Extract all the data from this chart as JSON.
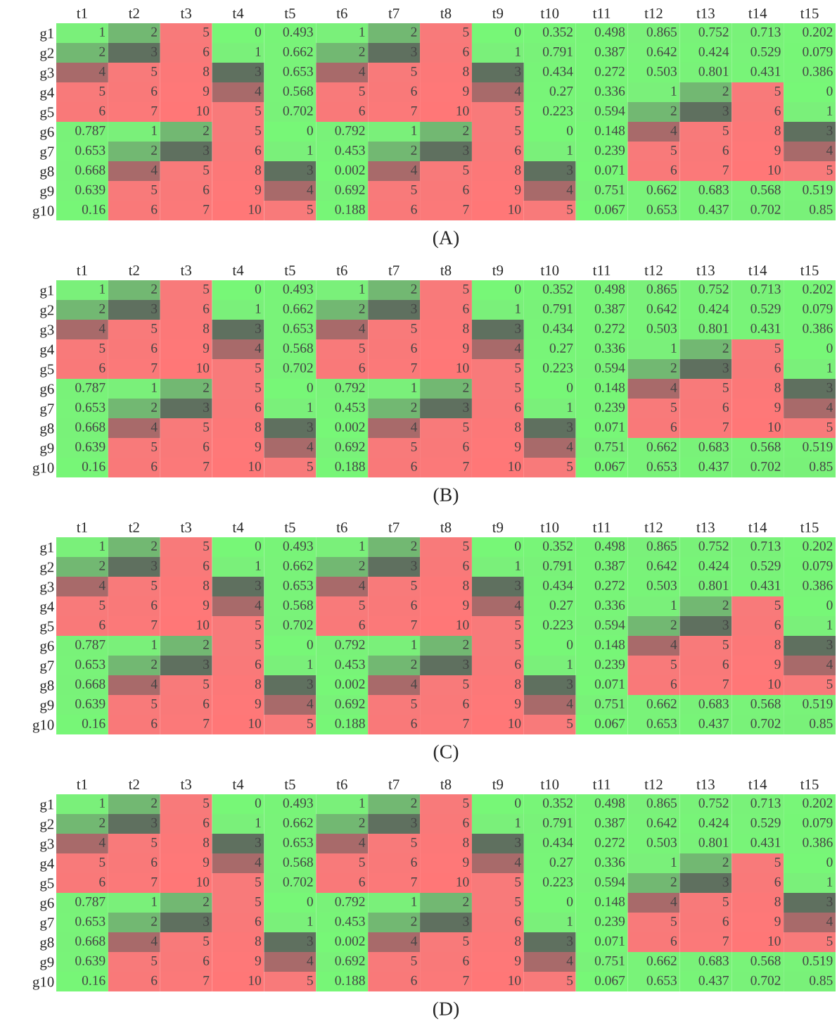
{
  "chart_data": [
    {
      "type": "heatmap",
      "title": "(A)",
      "data_labels": true,
      "categories": [
        "t1",
        "t2",
        "t3",
        "t4",
        "t5",
        "t6",
        "t7",
        "t8",
        "t9",
        "t10",
        "t11",
        "t12",
        "t13",
        "t14",
        "t15"
      ],
      "y_categories": [
        "g1",
        "g2",
        "g3",
        "g4",
        "g5",
        "g6",
        "g7",
        "g8",
        "g9",
        "g10"
      ],
      "cells": [
        [
          1,
          2,
          5,
          0,
          0.493,
          1,
          2,
          5,
          0,
          0.352,
          0.498,
          0.865,
          0.752,
          0.713,
          0.202
        ],
        [
          2,
          3,
          6,
          1,
          0.662,
          2,
          3,
          6,
          1,
          0.791,
          0.387,
          0.642,
          0.424,
          0.529,
          0.079
        ],
        [
          4,
          5,
          8,
          3,
          0.653,
          4,
          5,
          8,
          3,
          0.434,
          0.272,
          0.503,
          0.801,
          0.431,
          0.386
        ],
        [
          5,
          6,
          9,
          4,
          0.568,
          5,
          6,
          9,
          4,
          0.27,
          0.336,
          1,
          2,
          5,
          0
        ],
        [
          6,
          7,
          10,
          5,
          0.702,
          6,
          7,
          10,
          5,
          0.223,
          0.594,
          2,
          3,
          6,
          1
        ],
        [
          0.787,
          1,
          2,
          5,
          0,
          0.792,
          1,
          2,
          5,
          0,
          0.148,
          4,
          5,
          8,
          3
        ],
        [
          0.653,
          2,
          3,
          6,
          1,
          0.453,
          2,
          3,
          6,
          1,
          0.239,
          5,
          6,
          9,
          4
        ],
        [
          0.668,
          4,
          5,
          8,
          3,
          0.002,
          4,
          5,
          8,
          3,
          0.071,
          6,
          7,
          10,
          5
        ],
        [
          0.639,
          5,
          6,
          9,
          4,
          0.692,
          5,
          6,
          9,
          4,
          0.751,
          0.662,
          0.683,
          0.568,
          0.519
        ],
        [
          0.16,
          6,
          7,
          10,
          5,
          0.188,
          6,
          7,
          10,
          5,
          0.067,
          0.653,
          0.437,
          0.702,
          0.85
        ]
      ]
    },
    {
      "type": "heatmap",
      "title": "(B)",
      "data_labels": true,
      "categories": [
        "t1",
        "t2",
        "t3",
        "t4",
        "t5",
        "t6",
        "t7",
        "t8",
        "t9",
        "t10",
        "t11",
        "t12",
        "t13",
        "t14",
        "t15"
      ],
      "y_categories": [
        "g1",
        "g2",
        "g3",
        "g4",
        "g5",
        "g6",
        "g7",
        "g8",
        "g9",
        "g10"
      ],
      "cells": [
        [
          1,
          2,
          5,
          0,
          0.493,
          1,
          2,
          5,
          0,
          0.352,
          0.498,
          0.865,
          0.752,
          0.713,
          0.202
        ],
        [
          2,
          3,
          6,
          1,
          0.662,
          2,
          3,
          6,
          1,
          0.791,
          0.387,
          0.642,
          0.424,
          0.529,
          0.079
        ],
        [
          4,
          5,
          8,
          3,
          0.653,
          4,
          5,
          8,
          3,
          0.434,
          0.272,
          0.503,
          0.801,
          0.431,
          0.386
        ],
        [
          5,
          6,
          9,
          4,
          0.568,
          5,
          6,
          9,
          4,
          0.27,
          0.336,
          1,
          2,
          5,
          0
        ],
        [
          6,
          7,
          10,
          5,
          0.702,
          6,
          7,
          10,
          5,
          0.223,
          0.594,
          2,
          3,
          6,
          1
        ],
        [
          0.787,
          1,
          2,
          5,
          0,
          0.792,
          1,
          2,
          5,
          0,
          0.148,
          4,
          5,
          8,
          3
        ],
        [
          0.653,
          2,
          3,
          6,
          1,
          0.453,
          2,
          3,
          6,
          1,
          0.239,
          5,
          6,
          9,
          4
        ],
        [
          0.668,
          4,
          5,
          8,
          3,
          0.002,
          4,
          5,
          8,
          3,
          0.071,
          6,
          7,
          10,
          5
        ],
        [
          0.639,
          5,
          6,
          9,
          4,
          0.692,
          5,
          6,
          9,
          4,
          0.751,
          0.662,
          0.683,
          0.568,
          0.519
        ],
        [
          0.16,
          6,
          7,
          10,
          5,
          0.188,
          6,
          7,
          10,
          5,
          0.067,
          0.653,
          0.437,
          0.702,
          0.85
        ]
      ]
    },
    {
      "type": "heatmap",
      "title": "(C)",
      "data_labels": true,
      "categories": [
        "t1",
        "t2",
        "t3",
        "t4",
        "t5",
        "t6",
        "t7",
        "t8",
        "t9",
        "t10",
        "t11",
        "t12",
        "t13",
        "t14",
        "t15"
      ],
      "y_categories": [
        "g1",
        "g2",
        "g3",
        "g4",
        "g5",
        "g6",
        "g7",
        "g8",
        "g9",
        "g10"
      ],
      "cells": [
        [
          1,
          2,
          5,
          0,
          0.493,
          1,
          2,
          5,
          0,
          0.352,
          0.498,
          0.865,
          0.752,
          0.713,
          0.202
        ],
        [
          2,
          3,
          6,
          1,
          0.662,
          2,
          3,
          6,
          1,
          0.791,
          0.387,
          0.642,
          0.424,
          0.529,
          0.079
        ],
        [
          4,
          5,
          8,
          3,
          0.653,
          4,
          5,
          8,
          3,
          0.434,
          0.272,
          0.503,
          0.801,
          0.431,
          0.386
        ],
        [
          5,
          6,
          9,
          4,
          0.568,
          5,
          6,
          9,
          4,
          0.27,
          0.336,
          1,
          2,
          5,
          0
        ],
        [
          6,
          7,
          10,
          5,
          0.702,
          6,
          7,
          10,
          5,
          0.223,
          0.594,
          2,
          3,
          6,
          1
        ],
        [
          0.787,
          1,
          2,
          5,
          0,
          0.792,
          1,
          2,
          5,
          0,
          0.148,
          4,
          5,
          8,
          3
        ],
        [
          0.653,
          2,
          3,
          6,
          1,
          0.453,
          2,
          3,
          6,
          1,
          0.239,
          5,
          6,
          9,
          4
        ],
        [
          0.668,
          4,
          5,
          8,
          3,
          0.002,
          4,
          5,
          8,
          3,
          0.071,
          6,
          7,
          10,
          5
        ],
        [
          0.639,
          5,
          6,
          9,
          4,
          0.692,
          5,
          6,
          9,
          4,
          0.751,
          0.662,
          0.683,
          0.568,
          0.519
        ],
        [
          0.16,
          6,
          7,
          10,
          5,
          0.188,
          6,
          7,
          10,
          5,
          0.067,
          0.653,
          0.437,
          0.702,
          0.85
        ]
      ]
    },
    {
      "type": "heatmap",
      "title": "(D)",
      "data_labels": true,
      "categories": [
        "t1",
        "t2",
        "t3",
        "t4",
        "t5",
        "t6",
        "t7",
        "t8",
        "t9",
        "t10",
        "t11",
        "t12",
        "t13",
        "t14",
        "t15"
      ],
      "y_categories": [
        "g1",
        "g2",
        "g3",
        "g4",
        "g5",
        "g6",
        "g7",
        "g8",
        "g9",
        "g10"
      ],
      "cells": [
        [
          1,
          2,
          5,
          0,
          0.493,
          1,
          2,
          5,
          0,
          0.352,
          0.498,
          0.865,
          0.752,
          0.713,
          0.202
        ],
        [
          2,
          3,
          6,
          1,
          0.662,
          2,
          3,
          6,
          1,
          0.791,
          0.387,
          0.642,
          0.424,
          0.529,
          0.079
        ],
        [
          4,
          5,
          8,
          3,
          0.653,
          4,
          5,
          8,
          3,
          0.434,
          0.272,
          0.503,
          0.801,
          0.431,
          0.386
        ],
        [
          5,
          6,
          9,
          4,
          0.568,
          5,
          6,
          9,
          4,
          0.27,
          0.336,
          1,
          2,
          5,
          0
        ],
        [
          6,
          7,
          10,
          5,
          0.702,
          6,
          7,
          10,
          5,
          0.223,
          0.594,
          2,
          3,
          6,
          1
        ],
        [
          0.787,
          1,
          2,
          5,
          0,
          0.792,
          1,
          2,
          5,
          0,
          0.148,
          4,
          5,
          8,
          3
        ],
        [
          0.653,
          2,
          3,
          6,
          1,
          0.453,
          2,
          3,
          6,
          1,
          0.239,
          5,
          6,
          9,
          4
        ],
        [
          0.668,
          4,
          5,
          8,
          3,
          0.002,
          4,
          5,
          8,
          3,
          0.071,
          6,
          7,
          10,
          5
        ],
        [
          0.639,
          5,
          6,
          9,
          4,
          0.692,
          5,
          6,
          9,
          4,
          0.751,
          0.662,
          0.683,
          0.568,
          0.519
        ],
        [
          0.16,
          6,
          7,
          10,
          5,
          0.188,
          6,
          7,
          10,
          5,
          0.067,
          0.653,
          0.437,
          0.702,
          0.85
        ]
      ]
    }
  ]
}
